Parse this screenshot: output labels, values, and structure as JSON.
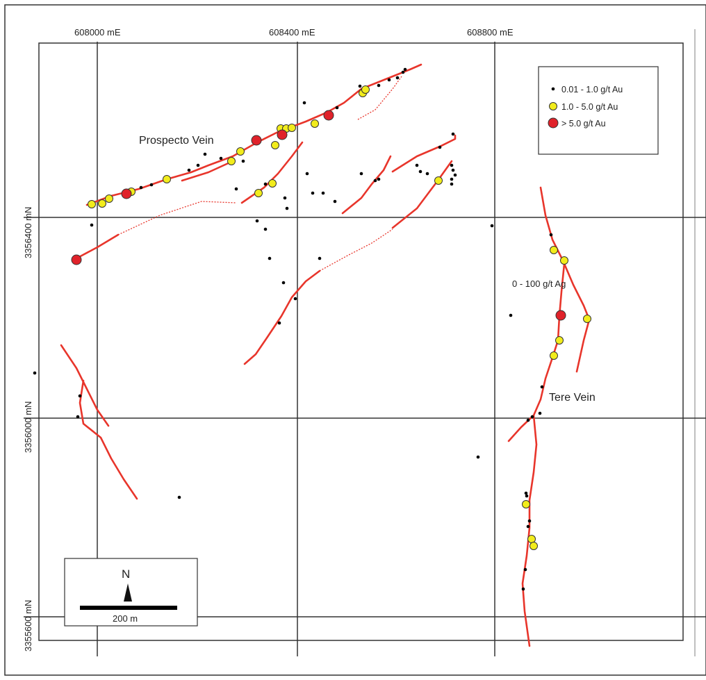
{
  "grid_labels": {
    "easting": [
      "608000 mE",
      "608400 mE",
      "608800 mE"
    ],
    "northing": [
      "3356400 mN",
      "3356000 mN",
      "3355600 mN"
    ]
  },
  "legend": {
    "items": [
      {
        "label": "0.01 - 1.0 g/t Au",
        "symbol": "small-black-dot",
        "color": "#000000"
      },
      {
        "label": "1.0 - 5.0 g/t Au",
        "symbol": "yellow-circle",
        "color": "#f2ec1c"
      },
      {
        "label": "> 5.0 g/t Au",
        "symbol": "red-circle",
        "color": "#e0222a"
      }
    ]
  },
  "annotations": {
    "prospecto_vein": "Prospecto Vein",
    "tere_vein": "Tere Vein",
    "ag_range": "0 - 100 g/t Ag"
  },
  "scale_bar": {
    "north_label": "N",
    "label": "200 m"
  },
  "colors": {
    "vein": "#e8352b",
    "inferred_vein": "#e8352b",
    "high_grade": "#e0222a",
    "mid_grade": "#f2ec1c",
    "low_grade": "#000000",
    "grid": "#333333"
  }
}
